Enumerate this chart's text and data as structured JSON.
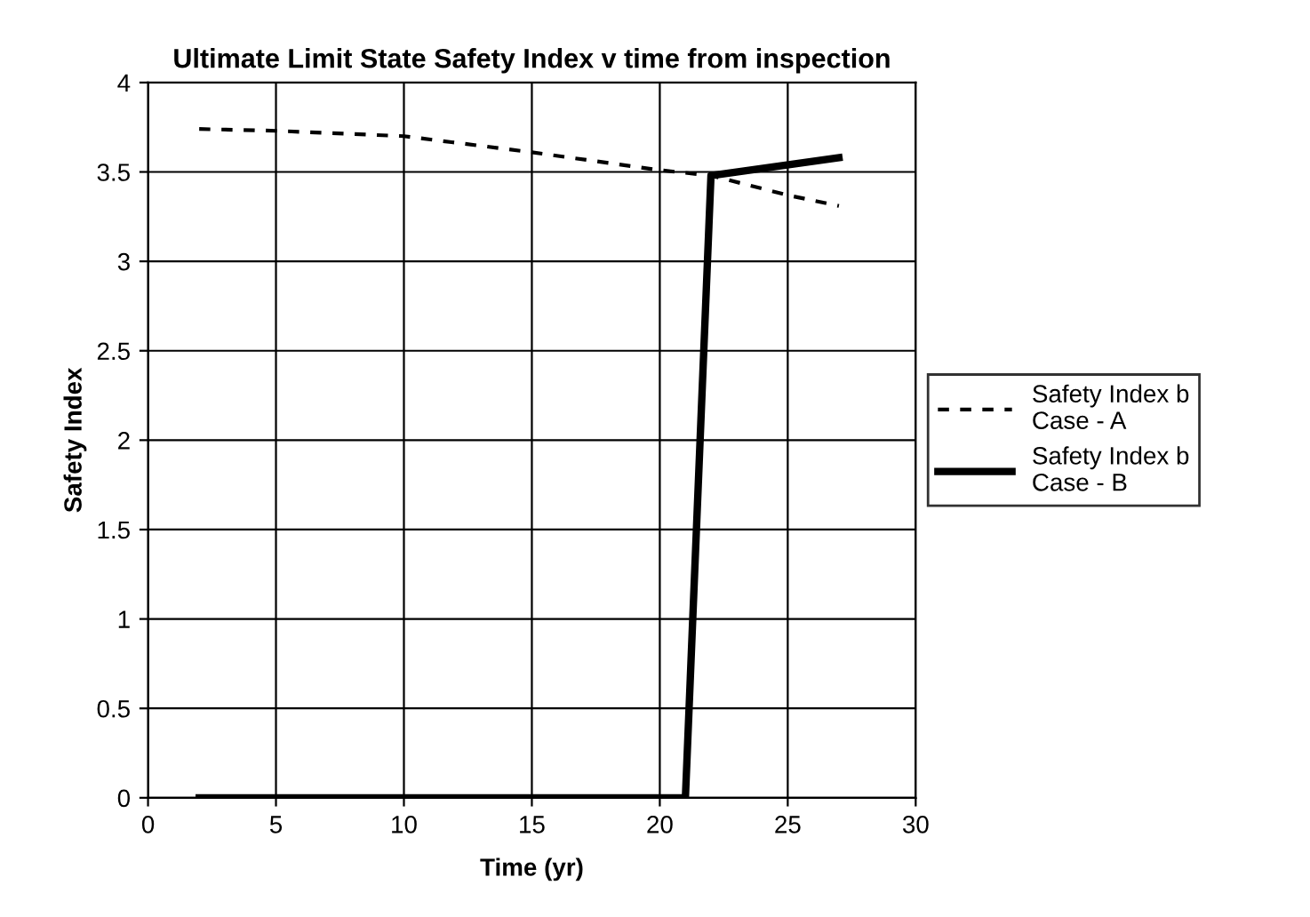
{
  "chart_data": {
    "type": "line",
    "title": "Ultimate Limit State Safety Index v time from inspection",
    "xlabel": "Time (yr)",
    "ylabel": "Safety Index",
    "xlim": [
      0,
      30
    ],
    "xticks": [
      0,
      5,
      10,
      15,
      20,
      25,
      30
    ],
    "ylim": [
      0,
      4
    ],
    "yticks": [
      0,
      0.5,
      1,
      1.5,
      2,
      2.5,
      3,
      3.5,
      4
    ],
    "grid": true,
    "legend": "right",
    "series": [
      {
        "name": "Safety Index b\nCase - A",
        "color": "#000000",
        "line_style": "dotted",
        "x": [
          2,
          5,
          10,
          15,
          20,
          22,
          25,
          27
        ],
        "values": [
          3.74,
          3.73,
          3.7,
          3.61,
          3.51,
          3.48,
          3.37,
          3.31
        ]
      },
      {
        "name": "Safety Index b\nCase - B",
        "color": "#000000",
        "line_style": "solid",
        "x": [
          2,
          21,
          22,
          27
        ],
        "values": [
          0,
          0,
          3.48,
          3.58
        ]
      }
    ]
  }
}
